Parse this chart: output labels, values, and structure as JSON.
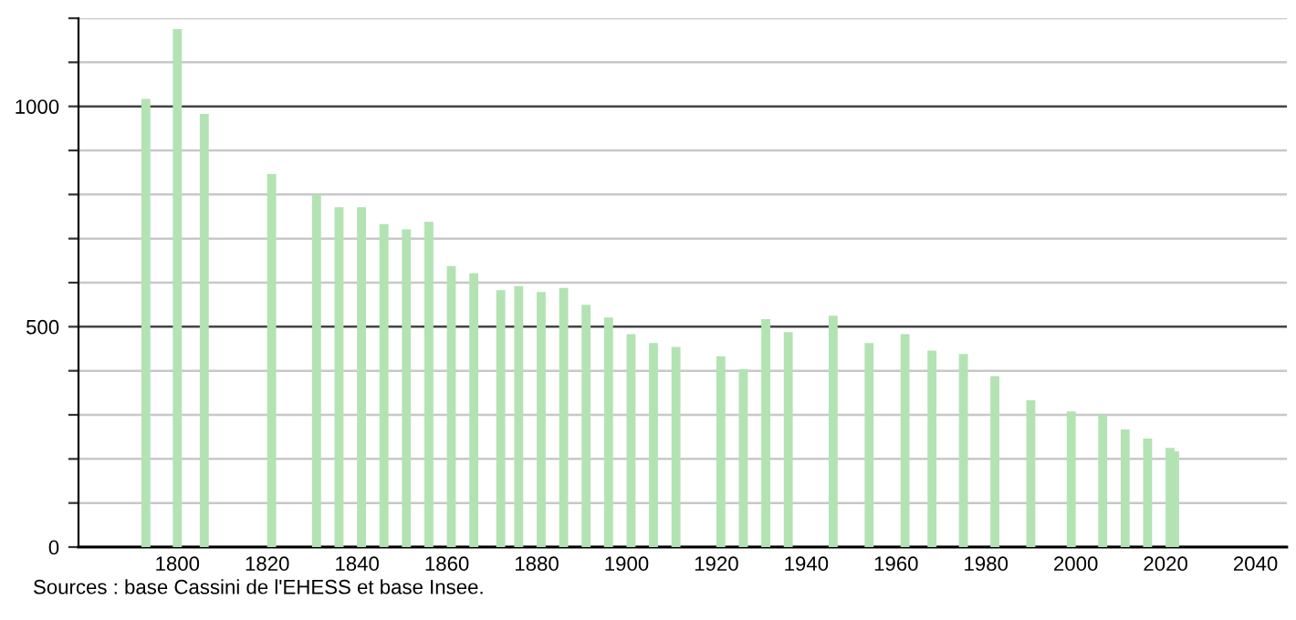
{
  "chart_data": {
    "type": "bar",
    "color": "#b3e3b3",
    "x": [
      1793,
      1800,
      1806,
      1821,
      1831,
      1836,
      1841,
      1846,
      1851,
      1856,
      1861,
      1866,
      1872,
      1876,
      1881,
      1886,
      1891,
      1896,
      1901,
      1906,
      1911,
      1921,
      1926,
      1931,
      1936,
      1946,
      1954,
      1962,
      1968,
      1975,
      1982,
      1990,
      1999,
      2006,
      2011,
      2016,
      2021,
      2022
    ],
    "values": [
      1017,
      1175,
      983,
      846,
      800,
      771,
      771,
      733,
      721,
      738,
      638,
      621,
      583,
      592,
      579,
      588,
      550,
      521,
      483,
      463,
      454,
      433,
      404,
      517,
      488,
      525,
      463,
      483,
      446,
      438,
      388,
      333,
      308,
      300,
      267,
      246,
      225,
      217
    ],
    "xlim": [
      1778,
      2047
    ],
    "xticks": [
      1800,
      1820,
      1840,
      1860,
      1880,
      1900,
      1920,
      1940,
      1960,
      1980,
      2000,
      2020,
      2040
    ],
    "ylim": [
      0,
      1200
    ],
    "yticks": [
      0,
      {
        "value": 100,
        "label": null
      },
      {
        "value": 200,
        "label": null
      },
      {
        "value": 300,
        "label": null
      },
      {
        "value": 400,
        "label": null
      },
      500,
      {
        "value": 600,
        "label": null
      },
      {
        "value": 700,
        "label": null
      },
      {
        "value": 800,
        "label": null
      },
      {
        "value": 900,
        "label": null
      },
      1000,
      {
        "value": 1100,
        "label": null
      },
      {
        "value": 1200,
        "label": null
      }
    ],
    "grid": "y",
    "annotations": [
      "Sources : base Cassini de l'EHESS et base Insee."
    ]
  }
}
